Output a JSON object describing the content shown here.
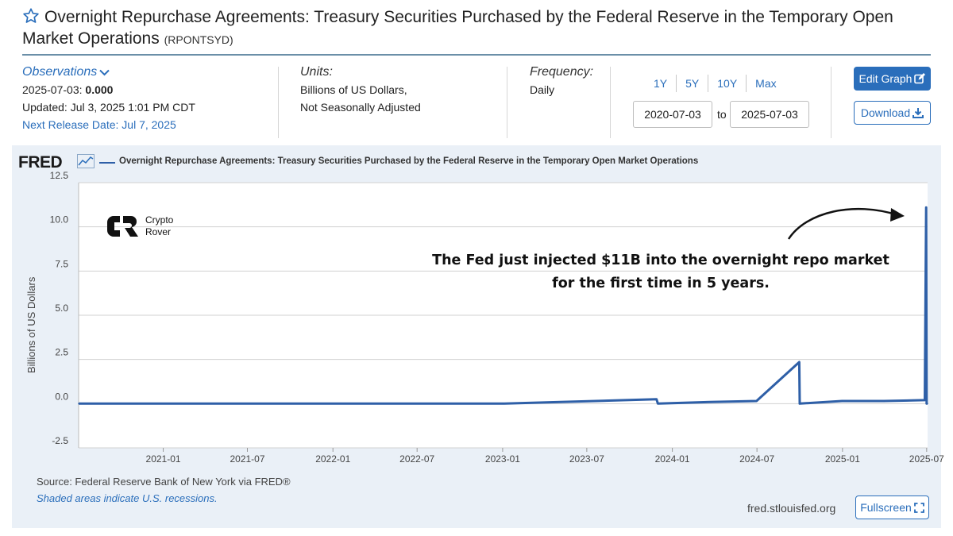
{
  "header": {
    "title": "Overnight Repurchase Agreements: Treasury Securities Purchased by the Federal Reserve in the Temporary Open Market Operations",
    "series_id": "(RPONTSYD)"
  },
  "observations": {
    "label": "Observations",
    "date": "2025-07-03:",
    "value": "0.000",
    "updated": "Updated: Jul 3, 2025 1:01 PM CDT",
    "next_release": "Next Release Date: Jul 7, 2025"
  },
  "units": {
    "label": "Units:",
    "line1": "Billions of US Dollars,",
    "line2": "Not Seasonally Adjusted"
  },
  "frequency": {
    "label": "Frequency:",
    "value": "Daily"
  },
  "range": {
    "options": [
      "1Y",
      "5Y",
      "10Y",
      "Max"
    ],
    "start": "2020-07-03",
    "to_label": "to",
    "end": "2025-07-03"
  },
  "buttons": {
    "edit_graph": "Edit Graph",
    "download": "Download",
    "fullscreen": "Fullscreen"
  },
  "graph": {
    "logo": "FRED",
    "legend": "Overnight Repurchase Agreements: Treasury Securities Purchased by the Federal Reserve in the Temporary Open Market Operations",
    "source": "Source: Federal Reserve Bank of New York via FRED®",
    "recession_note": "Shaded areas indicate U.S. recessions.",
    "site": "fred.stlouisfed.org"
  },
  "overlay": {
    "watermark_line1": "Crypto",
    "watermark_line2": "Rover",
    "annotation_line1": "The Fed just injected $11B into the overnight repo market",
    "annotation_line2": "for the first time in 5 years."
  },
  "colors": {
    "accent": "#2a6ebb",
    "series": "#2e5fa7",
    "panel": "#eaf0f7"
  },
  "chart_data": {
    "type": "line",
    "ylabel": "Billions of US Dollars",
    "ylim": [
      -2.5,
      12.5
    ],
    "yticks": [
      "12.5",
      "10.0",
      "7.5",
      "5.0",
      "2.5",
      "0.0",
      "-2.5"
    ],
    "xlim": [
      "2020-07-03",
      "2025-07-03"
    ],
    "xticks": [
      "2021-01",
      "2021-07",
      "2022-01",
      "2022-07",
      "2023-01",
      "2023-07",
      "2024-01",
      "2024-07",
      "2025-01",
      "2025-07"
    ],
    "grid": true,
    "series": [
      {
        "name": "Overnight Repurchase Agreements: Treasury Securities Purchased by the Federal Reserve in the Temporary Open Market Operations",
        "x": [
          "2020-07-03",
          "2023-01-01",
          "2023-11-28",
          "2023-12-01",
          "2024-04-01",
          "2024-06-30",
          "2024-09-30",
          "2024-10-01",
          "2024-12-31",
          "2025-03-31",
          "2025-06-27",
          "2025-06-30",
          "2025-07-01",
          "2025-07-03"
        ],
        "y": [
          0,
          0,
          0.25,
          0,
          0.1,
          0.15,
          2.35,
          0,
          0.15,
          0.15,
          0.2,
          11.1,
          0,
          0
        ]
      }
    ]
  }
}
